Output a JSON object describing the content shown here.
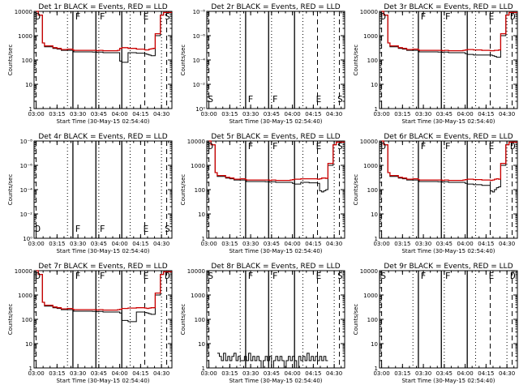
{
  "chart_data": [
    {
      "type": "line",
      "title": "Det 1r BLACK = Events, RED = LLD",
      "ylabel": "Counts/sec",
      "xlabel": "Start Time (30-May-15 02:54:40)",
      "x_ticks": [
        "03:00",
        "03:15",
        "03:30",
        "03:45",
        "04:00",
        "04:15",
        "04:30"
      ],
      "y_ticks": [
        "1",
        "10",
        "100",
        "1000",
        "10000"
      ],
      "y_log": true,
      "ylim": [
        1,
        10000
      ],
      "markers": [
        "D",
        "F",
        "F",
        "E",
        "S"
      ],
      "series": [
        {
          "color": "#000000",
          "x": [
            0,
            1,
            3,
            4,
            8,
            10,
            12,
            15,
            17.6,
            18,
            27,
            29,
            30,
            32,
            39,
            40,
            41,
            44,
            48,
            52,
            53,
            54,
            55,
            56,
            57,
            59.5,
            61,
            62,
            63,
            65
          ],
          "values": [
            10000,
            7000,
            500,
            350,
            300,
            280,
            250,
            250,
            250,
            215,
            210,
            205,
            210,
            200,
            200,
            90,
            80,
            200,
            190,
            180,
            170,
            160,
            150,
            150,
            1000,
            7000,
            9000,
            9000,
            9000,
            9000
          ]
        },
        {
          "color": "#cc0000",
          "x": [
            0,
            1,
            3,
            4,
            8,
            10,
            12,
            15,
            17.6,
            18,
            27,
            29,
            30,
            32,
            39,
            40,
            41,
            44,
            48,
            52,
            53,
            54,
            55,
            56,
            57,
            59.5,
            61,
            62,
            63,
            65
          ],
          "values": [
            10000,
            7000,
            500,
            380,
            320,
            300,
            270,
            280,
            260,
            250,
            250,
            240,
            250,
            240,
            250,
            300,
            320,
            300,
            280,
            260,
            260,
            280,
            290,
            300,
            1200,
            7000,
            9000,
            9000,
            9000,
            9000
          ]
        }
      ]
    },
    {
      "type": "line",
      "title": "Det 2r BLACK = Events, RED = LLD",
      "ylabel": "Counts/sec",
      "xlabel": "Start Time (30-May-15 02:54:40)",
      "x_ticks": [
        "03:00",
        "03:15",
        "03:30",
        "03:45",
        "04:00",
        "04:15",
        "04:30"
      ],
      "y_ticks": [
        "10⁰",
        "10⁻²",
        "10⁻⁴",
        "10⁻⁶",
        "10⁻⁸"
      ],
      "y_log": true,
      "markers": [
        "S",
        "F",
        "F",
        "E",
        "S"
      ],
      "series": []
    },
    {
      "type": "line",
      "title": "Det 3r BLACK = Events, RED = LLD",
      "ylabel": "Counts/sec",
      "xlabel": "Start Time (30-May-15 02:54:40)",
      "x_ticks": [
        "03:00",
        "03:15",
        "03:30",
        "03:45",
        "04:00",
        "04:15",
        "04:30"
      ],
      "y_ticks": [
        "1",
        "10",
        "100",
        "1000",
        "10000"
      ],
      "y_log": true,
      "ylim": [
        1,
        10000
      ],
      "markers": [
        "D",
        "F",
        "F",
        "E",
        "D"
      ],
      "series": [
        {
          "color": "#000000",
          "x": [
            0,
            1,
            3,
            4,
            8,
            10,
            12,
            15,
            17.6,
            18,
            27,
            29,
            30,
            32,
            39,
            40,
            41,
            44,
            48,
            52,
            53,
            54,
            55,
            56,
            57,
            59.5,
            61,
            62,
            63,
            65
          ],
          "values": [
            10000,
            7000,
            500,
            350,
            300,
            280,
            250,
            250,
            250,
            215,
            210,
            205,
            210,
            200,
            200,
            180,
            170,
            160,
            160,
            160,
            150,
            140,
            130,
            130,
            1000,
            7000,
            9000,
            9000,
            9000,
            9000
          ]
        },
        {
          "color": "#cc0000",
          "x": [
            0,
            1,
            3,
            4,
            8,
            10,
            12,
            15,
            17.6,
            18,
            27,
            29,
            30,
            32,
            39,
            40,
            41,
            44,
            48,
            52,
            53,
            54,
            55,
            56,
            57,
            59.5,
            61,
            62,
            63,
            65
          ],
          "values": [
            10000,
            7000,
            500,
            380,
            320,
            300,
            270,
            280,
            260,
            250,
            250,
            240,
            250,
            240,
            250,
            260,
            270,
            260,
            250,
            240,
            240,
            250,
            250,
            260,
            1200,
            7000,
            9000,
            9000,
            9000,
            9000
          ]
        }
      ]
    },
    {
      "type": "line",
      "title": "Det 4r BLACK = Events, RED = LLD",
      "ylabel": "Counts/sec",
      "xlabel": "Start Time (30-May-15 02:54:40)",
      "x_ticks": [
        "03:00",
        "03:15",
        "03:30",
        "03:45",
        "04:00",
        "04:15",
        "04:30"
      ],
      "y_ticks": [
        "10⁰",
        "10⁻²",
        "10⁻⁴",
        "10⁻⁶",
        "10⁻⁸"
      ],
      "y_log": true,
      "markers": [
        "D",
        "F",
        "F",
        "E",
        "S"
      ],
      "series": []
    },
    {
      "type": "line",
      "title": "Det 5r BLACK = Events, RED = LLD",
      "ylabel": "Counts/sec",
      "xlabel": "Start Time (30-May-15 02:54:40)",
      "x_ticks": [
        "03:00",
        "03:15",
        "03:30",
        "03:45",
        "04:00",
        "04:15",
        "04:30"
      ],
      "y_ticks": [
        "1",
        "10",
        "100",
        "1000",
        "10000"
      ],
      "y_log": true,
      "ylim": [
        1,
        10000
      ],
      "markers": [
        "D",
        "F",
        "F",
        "E",
        "S"
      ],
      "series": [
        {
          "color": "#000000",
          "x": [
            0,
            1,
            3,
            4,
            8,
            10,
            12,
            15,
            17.6,
            18,
            27,
            29,
            30,
            32,
            39,
            40,
            41,
            44,
            48,
            52,
            53,
            54,
            55,
            56,
            57,
            59.5,
            61,
            62,
            63,
            65
          ],
          "values": [
            10000,
            7000,
            500,
            350,
            300,
            280,
            250,
            250,
            250,
            215,
            210,
            205,
            210,
            200,
            200,
            180,
            170,
            200,
            190,
            180,
            90,
            80,
            90,
            100,
            1000,
            7000,
            9000,
            9000,
            9000,
            9000
          ]
        },
        {
          "color": "#cc0000",
          "x": [
            0,
            1,
            3,
            4,
            8,
            10,
            12,
            15,
            17.6,
            18,
            27,
            29,
            30,
            32,
            39,
            40,
            41,
            44,
            48,
            52,
            53,
            54,
            55,
            56,
            57,
            59.5,
            61,
            62,
            63,
            65
          ],
          "values": [
            10000,
            7000,
            500,
            380,
            320,
            300,
            270,
            280,
            260,
            250,
            250,
            240,
            250,
            240,
            250,
            260,
            270,
            280,
            280,
            270,
            280,
            300,
            300,
            290,
            1200,
            7000,
            9000,
            9000,
            9000,
            9000
          ]
        }
      ]
    },
    {
      "type": "line",
      "title": "Det 6r BLACK = Events, RED = LLD",
      "ylabel": "Counts/sec",
      "xlabel": "Start Time (30-May-15 02:54:40)",
      "x_ticks": [
        "03:00",
        "03:15",
        "03:30",
        "03:45",
        "04:00",
        "04:15",
        "04:30"
      ],
      "y_ticks": [
        "1",
        "10",
        "100",
        "1000",
        "10000"
      ],
      "y_log": true,
      "ylim": [
        1,
        10000
      ],
      "markers": [
        "D",
        "F",
        "F",
        "E",
        "D"
      ],
      "series": [
        {
          "color": "#000000",
          "x": [
            0,
            1,
            3,
            4,
            8,
            10,
            12,
            15,
            17.6,
            18,
            27,
            29,
            30,
            32,
            39,
            40,
            41,
            44,
            48,
            52,
            53,
            54,
            55,
            56,
            57,
            59.5,
            61,
            62,
            63,
            65
          ],
          "values": [
            10000,
            7000,
            500,
            350,
            300,
            280,
            250,
            250,
            250,
            215,
            210,
            205,
            210,
            200,
            200,
            180,
            170,
            160,
            150,
            90,
            80,
            100,
            120,
            130,
            1000,
            7000,
            9000,
            9000,
            9000,
            9000
          ]
        },
        {
          "color": "#cc0000",
          "x": [
            0,
            1,
            3,
            4,
            8,
            10,
            12,
            15,
            17.6,
            18,
            27,
            29,
            30,
            32,
            39,
            40,
            41,
            44,
            48,
            52,
            53,
            54,
            55,
            56,
            57,
            59.5,
            61,
            62,
            63,
            65
          ],
          "values": [
            10000,
            7000,
            500,
            380,
            320,
            300,
            270,
            280,
            260,
            250,
            250,
            240,
            250,
            240,
            250,
            260,
            270,
            260,
            250,
            240,
            250,
            270,
            280,
            270,
            1200,
            7000,
            9000,
            9000,
            9000,
            9000
          ]
        }
      ]
    },
    {
      "type": "line",
      "title": "Det 7r BLACK = Events, RED = LLD",
      "ylabel": "Counts/sec",
      "xlabel": "Start Time (30-May-15 02:54:40)",
      "x_ticks": [
        "03:00",
        "03:15",
        "03:30",
        "03:45",
        "04:00",
        "04:15",
        "04:30"
      ],
      "y_ticks": [
        "1",
        "10",
        "100",
        "1000",
        "10000"
      ],
      "y_log": true,
      "ylim": [
        1,
        10000
      ],
      "markers": [
        "D",
        "F",
        "F",
        "E",
        "D"
      ],
      "series": [
        {
          "color": "#000000",
          "x": [
            0,
            1,
            3,
            4,
            8,
            10,
            12,
            15,
            17.6,
            18,
            27,
            29,
            30,
            32,
            39,
            40,
            41,
            44,
            48,
            52,
            53,
            54,
            55,
            56,
            57,
            59.5,
            61,
            62,
            63,
            65
          ],
          "values": [
            10000,
            7000,
            500,
            350,
            300,
            280,
            250,
            250,
            250,
            215,
            210,
            205,
            210,
            200,
            200,
            180,
            90,
            80,
            200,
            190,
            180,
            170,
            160,
            160,
            1000,
            7000,
            9000,
            9000,
            9000,
            9000
          ]
        },
        {
          "color": "#cc0000",
          "x": [
            0,
            1,
            3,
            4,
            8,
            10,
            12,
            15,
            17.6,
            18,
            27,
            29,
            30,
            32,
            39,
            40,
            41,
            44,
            48,
            52,
            53,
            54,
            55,
            56,
            57,
            59.5,
            61,
            62,
            63,
            65
          ],
          "values": [
            10000,
            7000,
            500,
            380,
            320,
            300,
            270,
            280,
            260,
            250,
            250,
            240,
            250,
            240,
            250,
            260,
            280,
            290,
            300,
            290,
            280,
            290,
            300,
            300,
            1200,
            7000,
            9000,
            9000,
            9000,
            9000
          ]
        }
      ]
    },
    {
      "type": "line",
      "title": "Det 8r BLACK = Events, RED = LLD",
      "ylabel": "Counts/sec",
      "xlabel": "Start Time (30-May-15 02:54:40)",
      "x_ticks": [
        "03:00",
        "03:15",
        "03:30",
        "03:45",
        "04:00",
        "04:15",
        "04:30"
      ],
      "y_ticks": [
        "1",
        "10",
        "100",
        "1000",
        "10000"
      ],
      "y_log": true,
      "ylim": [
        1,
        10000
      ],
      "markers": [
        "S",
        "F",
        "F",
        "E",
        "S"
      ],
      "series": [
        {
          "color": "#000000",
          "x": [
            4,
            5,
            6,
            7,
            8,
            9,
            10,
            11,
            12,
            13,
            14,
            15,
            16,
            17,
            18,
            19,
            20,
            21,
            22,
            23,
            24,
            25,
            26,
            27,
            28,
            29,
            30,
            31,
            32,
            33,
            34,
            35,
            36,
            37,
            38,
            39,
            40,
            41,
            42,
            43,
            44,
            45,
            46,
            47,
            48,
            49,
            50,
            51,
            52,
            53,
            54,
            55,
            56,
            57
          ],
          "values": [
            4,
            3,
            2,
            4,
            2,
            3,
            2,
            3,
            4,
            2,
            3,
            2,
            2,
            3,
            2,
            4,
            2,
            3,
            2,
            3,
            2,
            1,
            2,
            3,
            2,
            3,
            1,
            2,
            3,
            2,
            3,
            2,
            1,
            2,
            3,
            2,
            3,
            2,
            1,
            3,
            2,
            3,
            2,
            4,
            2,
            3,
            2,
            3,
            2,
            3,
            2,
            3,
            2,
            2
          ]
        }
      ]
    },
    {
      "type": "line",
      "title": "Det 9r BLACK = Events, RED = LLD",
      "ylabel": "Counts/sec",
      "xlabel": "Start Time (30-May-15 02:54:40)",
      "x_ticks": [
        "03:00",
        "03:15",
        "03:30",
        "03:45",
        "04:00",
        "04:15",
        "04:30"
      ],
      "y_ticks": [
        "1",
        "10",
        "100",
        "1000",
        "10000"
      ],
      "y_log": true,
      "ylim": [
        1,
        10000
      ],
      "markers": [
        "S",
        "F",
        "F",
        "E",
        "D"
      ],
      "series": []
    }
  ]
}
